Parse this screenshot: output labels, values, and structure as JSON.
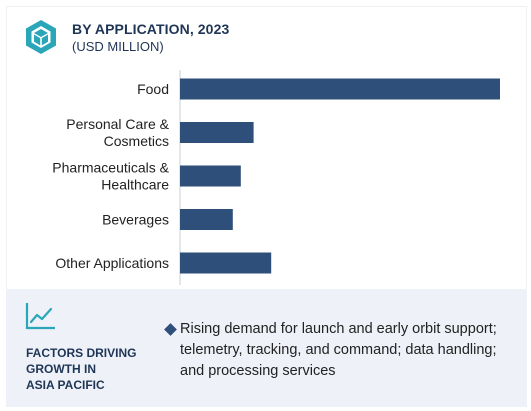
{
  "header": {
    "title": "BY APPLICATION, 2023",
    "subtitle": "(USD MILLION)",
    "icon": "hexagon-box-icon"
  },
  "chart_data": {
    "type": "bar",
    "orientation": "horizontal",
    "title": "BY APPLICATION, 2023",
    "subtitle": "(USD MILLION)",
    "categories": [
      [
        "Food"
      ],
      [
        "Personal Care &",
        "Cosmetics"
      ],
      [
        "Pharmaceuticals &",
        "Healthcare"
      ],
      [
        "Beverages"
      ],
      [
        "Other Applications"
      ]
    ],
    "values": [
      100,
      23,
      19,
      16.5,
      28.5
    ],
    "grid": false,
    "bar_color": "#2e4f7a"
  },
  "footer": {
    "icon": "trend-line-icon",
    "factors_title_lines": [
      "FACTORS DRIVING",
      "GROWTH IN",
      "ASIA PACIFIC"
    ],
    "driver_text": "Rising demand for launch and early orbit support; telemetry, tracking, and command; data handling; and processing services",
    "accent_color": "#2e4f7a",
    "background_color": "#eef2f8"
  }
}
